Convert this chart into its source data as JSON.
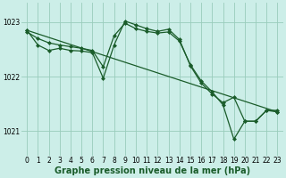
{
  "background_color": "#cceee8",
  "grid_color": "#99ccbb",
  "line_color": "#1a5c2a",
  "xlabel": "Graphe pression niveau de la mer (hPa)",
  "xlabel_fontsize": 7,
  "ylabel_ticks": [
    1021,
    1022,
    1023
  ],
  "xlim": [
    -0.5,
    23.5
  ],
  "ylim": [
    1020.55,
    1023.35
  ],
  "series1": {
    "x": [
      0,
      1,
      2,
      3,
      4,
      5,
      6,
      7,
      8,
      9,
      10,
      11,
      12,
      13,
      14,
      15,
      16,
      17,
      18,
      19,
      20,
      21,
      22,
      23
    ],
    "y": [
      1022.82,
      1022.7,
      1022.62,
      1022.58,
      1022.55,
      1022.52,
      1022.48,
      1022.18,
      1022.75,
      1022.98,
      1022.88,
      1022.83,
      1022.8,
      1022.82,
      1022.65,
      1022.22,
      1021.92,
      1021.72,
      1021.48,
      1020.85,
      1021.18,
      1021.18,
      1021.38,
      1021.38
    ]
  },
  "series2": {
    "x": [
      0,
      1,
      2,
      3,
      4,
      5,
      6,
      7,
      8,
      9,
      10,
      11,
      12,
      13,
      14,
      15,
      16,
      17,
      18,
      19,
      20,
      21,
      22,
      23
    ],
    "y": [
      1022.85,
      1022.58,
      1022.48,
      1022.52,
      1022.48,
      1022.47,
      1022.44,
      1021.97,
      1022.58,
      1023.02,
      1022.95,
      1022.88,
      1022.83,
      1022.87,
      1022.68,
      1022.2,
      1021.88,
      1021.68,
      1021.52,
      1021.62,
      1021.18,
      1021.18,
      1021.38,
      1021.35
    ]
  },
  "series3": {
    "x": [
      0,
      23
    ],
    "y": [
      1022.85,
      1021.35
    ]
  },
  "xtick_labels": [
    "0",
    "1",
    "2",
    "3",
    "4",
    "5",
    "6",
    "7",
    "8",
    "9",
    "10",
    "11",
    "12",
    "13",
    "14",
    "15",
    "16",
    "17",
    "18",
    "19",
    "20",
    "21",
    "22",
    "23"
  ],
  "tick_fontsize": 5.5,
  "marker": "D",
  "markersize": 2.0,
  "linewidth": 0.9
}
